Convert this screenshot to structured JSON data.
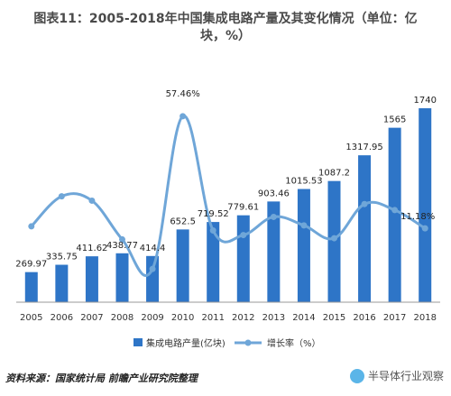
{
  "title_line1": "图表11：2005-2018年中国集成电路产量及其变化情况（单位：亿",
  "title_line2": "块，%）",
  "source": "资料来源：国家统计局 前瞻产业研究院整理",
  "badge": "半导体行业观察",
  "colors": {
    "bar": "#2e75c7",
    "line": "#6fa6d8",
    "axis": "#999999"
  },
  "chart_data": {
    "type": "bar",
    "title": "图表11：2005-2018年中国集成电路产量及其变化情况（单位：亿块，%）",
    "categories": [
      "2005",
      "2006",
      "2007",
      "2008",
      "2009",
      "2010",
      "2011",
      "2012",
      "2013",
      "2014",
      "2015",
      "2016",
      "2017",
      "2018"
    ],
    "series": [
      {
        "name": "集成电路产量(亿块)",
        "type": "bar",
        "values": [
          269.97,
          335.75,
          411.62,
          438.77,
          414.4,
          652.5,
          719.52,
          779.61,
          903.46,
          1015.53,
          1087.2,
          1317.95,
          1565,
          1740
        ]
      },
      {
        "name": "增长率（%）",
        "type": "line",
        "values": [
          12.0,
          24.4,
          22.6,
          6.6,
          -5.6,
          57.46,
          10.3,
          8.4,
          15.9,
          12.4,
          7.1,
          21.2,
          18.7,
          11.18
        ]
      }
    ],
    "bar_labels": [
      "269.97",
      "335.75",
      "411.62",
      "438.77",
      "414.4",
      "652.5",
      "719.52",
      "779.61",
      "903.46",
      "1015.53",
      "1087.2",
      "1317.95",
      "1565",
      "1740"
    ],
    "line_labels": [
      {
        "index": 5,
        "text": "57.46%"
      },
      {
        "index": 13,
        "text": "11.18%"
      }
    ],
    "legend": [
      "集成电路产量(亿块)",
      "增长率（%）"
    ],
    "legend_position": "bottom",
    "grid": false
  }
}
